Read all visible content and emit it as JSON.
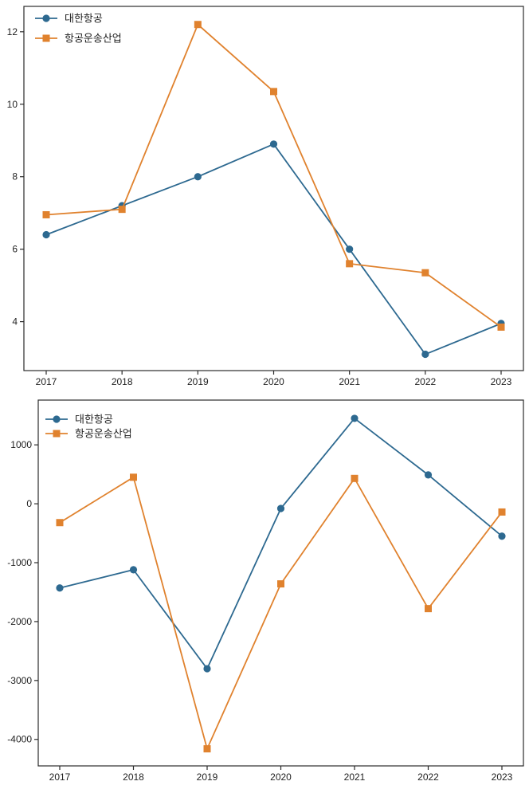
{
  "page": {
    "background": "#ffffff",
    "spine_color": "#2b2b2b",
    "text_color": "#1f1f1f"
  },
  "chart_data": [
    {
      "name": "top-ratio-line-chart",
      "type": "line",
      "title": "",
      "xlabel": "",
      "ylabel": "",
      "categories": [
        "2017",
        "2018",
        "2019",
        "2020",
        "2021",
        "2022",
        "2023"
      ],
      "series": [
        {
          "name": "대한항공",
          "color": "#2d6990",
          "marker": "circle",
          "values": [
            6.4,
            7.2,
            8.0,
            8.9,
            6.0,
            3.1,
            3.95
          ]
        },
        {
          "name": "항공운송산업",
          "color": "#e0822e",
          "marker": "square",
          "values": [
            6.95,
            7.1,
            12.2,
            10.35,
            5.6,
            5.35,
            3.85
          ]
        }
      ],
      "yticks": [
        4,
        6,
        8,
        10,
        12
      ],
      "ylim": [
        2.65,
        12.7
      ],
      "grid": false,
      "legend_position": "upper left",
      "legend_frame": false
    },
    {
      "name": "bottom-profit-line-chart",
      "type": "line",
      "title": "",
      "xlabel": "",
      "ylabel": "",
      "categories": [
        "2017",
        "2018",
        "2019",
        "2020",
        "2021",
        "2022",
        "2023"
      ],
      "series": [
        {
          "name": "대한항공",
          "color": "#2d6990",
          "marker": "circle",
          "values": [
            -1430,
            -1120,
            -2800,
            -80,
            1450,
            490,
            -550
          ]
        },
        {
          "name": "항공운송산업",
          "color": "#e0822e",
          "marker": "square",
          "values": [
            -320,
            450,
            -4160,
            -1360,
            430,
            -1780,
            -140
          ]
        }
      ],
      "yticks": [
        1000,
        0,
        -1000,
        -2000,
        -3000,
        -4000
      ],
      "ylim": [
        -4450,
        1760
      ],
      "grid": false,
      "legend_position": "upper left",
      "legend_frame": false
    }
  ]
}
